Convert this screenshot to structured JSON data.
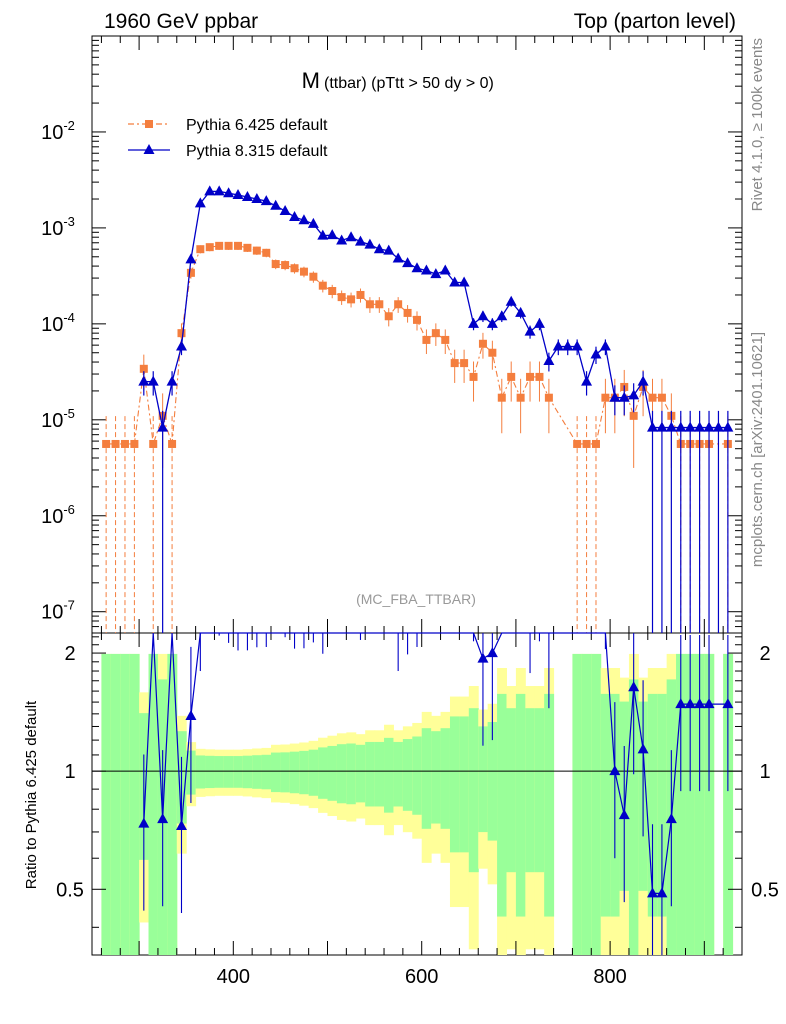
{
  "header": {
    "left": "1960 GeV ppbar",
    "right": "Top (parton level)"
  },
  "side": {
    "rivet": "Rivet 4.1.0, ≥ 100k events",
    "mcplots": "mcplots.cern.ch [arXiv:2401.10621]"
  },
  "colors": {
    "pythia6": "#f47e3e",
    "pythia8": "#0000c8",
    "band_inner": "#99ff99",
    "band_outer": "#ffff99"
  },
  "chart_data": {
    "type": "line",
    "title_main": "M",
    "title_sub": "(ttbar) (pTtt > 50 dy > 0)",
    "watermark": "(MC_FBA_TTBAR)",
    "xlabel": "",
    "ylabel_ratio": "Ratio to Pythia 6.425 default",
    "xlim": [
      250,
      940
    ],
    "ylim": [
      6e-08,
      0.1
    ],
    "ratio_ylim": [
      0.34,
      2.25
    ],
    "log_y": true,
    "x_tick_labels": [
      "400",
      "600",
      "800"
    ],
    "y_tick_labels": [
      "10^-7",
      "10^-6",
      "10^-5",
      "10^-4",
      "10^-3",
      "10^-2"
    ],
    "ratio_tick_labels": [
      "0.5",
      "1",
      "2"
    ],
    "legend": [
      "Pythia 6.425 default",
      "Pythia 8.315 default"
    ],
    "x": [
      265,
      275,
      285,
      295,
      305,
      315,
      325,
      335,
      345,
      355,
      365,
      375,
      385,
      395,
      405,
      415,
      425,
      435,
      445,
      455,
      465,
      475,
      485,
      495,
      505,
      515,
      525,
      535,
      545,
      555,
      565,
      575,
      585,
      595,
      605,
      615,
      625,
      635,
      645,
      655,
      665,
      675,
      685,
      695,
      705,
      715,
      725,
      735,
      745,
      755,
      765,
      775,
      785,
      795,
      805,
      815,
      825,
      835,
      845,
      855,
      865,
      875,
      885,
      895,
      905,
      915,
      925
    ],
    "series": [
      {
        "name": "Pythia 6.425 default",
        "values": [
          5.6e-06,
          5.6e-06,
          5.6e-06,
          5.6e-06,
          3.4e-05,
          5.6e-06,
          1.1e-05,
          5.6e-06,
          8e-05,
          0.00034,
          0.0006,
          0.00063,
          0.00065,
          0.00065,
          0.00065,
          0.00062,
          0.00058,
          0.00055,
          0.00042,
          0.00041,
          0.00038,
          0.00035,
          0.00031,
          0.00025,
          0.00022,
          0.00019,
          0.00018,
          0.0002,
          0.00016,
          0.00016,
          0.00012,
          0.00016,
          0.00013,
          0.00011,
          6.8e-05,
          8e-05,
          6.8e-05,
          3.9e-05,
          3.9e-05,
          2.8e-05,
          6.2e-05,
          5e-05,
          1.7e-05,
          2.8e-05,
          1.7e-05,
          2.8e-05,
          2.8e-05,
          1.7e-05,
          null,
          null,
          5.6e-06,
          5.6e-06,
          5.6e-06,
          1.7e-05,
          1.7e-05,
          2.2e-05,
          1.1e-05,
          2.2e-05,
          1.7e-05,
          1.7e-05,
          1.1e-05,
          5.6e-06,
          5.6e-06,
          5.6e-06,
          5.6e-06,
          null,
          5.6e-06
        ]
      },
      {
        "name": "Pythia 8.315 default",
        "values": [
          null,
          null,
          null,
          null,
          2.5e-05,
          2.5e-05,
          8.3e-06,
          2.5e-05,
          5.8e-05,
          0.00047,
          0.0018,
          0.0024,
          0.0024,
          0.0023,
          0.0022,
          0.0021,
          0.002,
          0.0019,
          0.0017,
          0.0015,
          0.0013,
          0.0012,
          0.0011,
          0.00083,
          0.00084,
          0.00074,
          0.0008,
          0.00072,
          0.00067,
          0.0006,
          0.00058,
          0.00048,
          0.00043,
          0.00038,
          0.00036,
          0.00033,
          0.00036,
          0.00027,
          0.00027,
          0.0001,
          0.00012,
          0.0001,
          0.00012,
          0.00017,
          0.00013,
          8.3e-05,
          0.0001,
          4.1e-05,
          5.8e-05,
          5.8e-05,
          5.8e-05,
          2.5e-05,
          4.8e-05,
          5.8e-05,
          1.7e-05,
          1.7e-05,
          1.8e-05,
          2.5e-05,
          8.3e-06,
          8.3e-06,
          8.3e-06,
          8.3e-06,
          8.3e-06,
          8.3e-06,
          8.3e-06,
          8.3e-06,
          8.3e-06
        ]
      }
    ]
  }
}
